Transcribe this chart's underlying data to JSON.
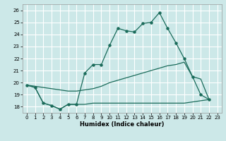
{
  "xlabel": "Humidex (Indice chaleur)",
  "bg_color": "#cce8e8",
  "grid_color": "#ffffff",
  "line_color": "#1a6b5a",
  "xlim": [
    -0.5,
    23.5
  ],
  "ylim": [
    17.5,
    26.5
  ],
  "xticks": [
    0,
    1,
    2,
    3,
    4,
    5,
    6,
    7,
    8,
    9,
    10,
    11,
    12,
    13,
    14,
    15,
    16,
    17,
    18,
    19,
    20,
    21,
    22,
    23
  ],
  "yticks": [
    18,
    19,
    20,
    21,
    22,
    23,
    24,
    25,
    26
  ],
  "series1_x": [
    0,
    1,
    2,
    3,
    4,
    5,
    6,
    7,
    8,
    9,
    10,
    11,
    12,
    13,
    14,
    15,
    16,
    17,
    18,
    19,
    20,
    21,
    22
  ],
  "series1_y": [
    19.8,
    19.6,
    18.3,
    18.1,
    17.8,
    18.2,
    18.2,
    20.8,
    21.5,
    21.5,
    23.1,
    24.5,
    24.3,
    24.2,
    24.9,
    25.0,
    25.8,
    24.5,
    23.3,
    22.0,
    20.5,
    19.0,
    18.6
  ],
  "series2_x": [
    0,
    1,
    2,
    3,
    4,
    5,
    6,
    7,
    8,
    9,
    10,
    11,
    12,
    13,
    14,
    15,
    16,
    17,
    18,
    19,
    20,
    21,
    22
  ],
  "series2_y": [
    19.8,
    19.7,
    19.6,
    19.5,
    19.4,
    19.3,
    19.3,
    19.4,
    19.5,
    19.7,
    20.0,
    20.2,
    20.4,
    20.6,
    20.8,
    21.0,
    21.2,
    21.4,
    21.5,
    21.7,
    20.5,
    20.3,
    18.6
  ],
  "series3_x": [
    0,
    1,
    2,
    3,
    4,
    5,
    6,
    7,
    8,
    9,
    10,
    11,
    12,
    13,
    14,
    15,
    16,
    17,
    18,
    19,
    20,
    21,
    22
  ],
  "series3_y": [
    19.8,
    19.6,
    18.3,
    18.1,
    17.8,
    18.2,
    18.2,
    18.2,
    18.3,
    18.3,
    18.3,
    18.3,
    18.3,
    18.3,
    18.3,
    18.3,
    18.3,
    18.3,
    18.3,
    18.3,
    18.4,
    18.5,
    18.6
  ]
}
